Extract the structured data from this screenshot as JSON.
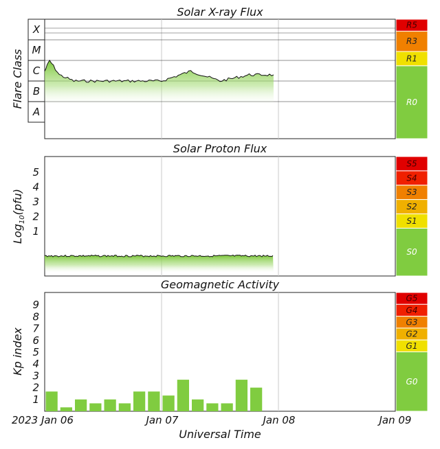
{
  "chart_data": [
    {
      "type": "area",
      "title": "Solar X-ray Flux",
      "ylabel": "Flare Class",
      "y_classes": [
        "X",
        "M",
        "C",
        "B",
        "A"
      ],
      "x": [
        "Jan 06 00:00",
        "Jan 06 01:00",
        "Jan 06 03:00",
        "Jan 06 06:00",
        "Jan 06 12:00",
        "Jan 06 18:00",
        "Jan 07 00:00",
        "Jan 07 06:00",
        "Jan 07 12:00",
        "Jan 07 18:00",
        "Jan 07 23:00"
      ],
      "values": [
        "C3",
        "M1",
        "C2",
        "C1",
        "C1",
        "C1",
        "C1",
        "C3",
        "C1",
        "C2",
        "C2"
      ],
      "scale": [
        {
          "label": "R5",
          "color": "#e00000"
        },
        {
          "label": "R3",
          "color": "#f08000"
        },
        {
          "label": "R1",
          "color": "#f0e000"
        },
        {
          "label": "R0",
          "color": "#80cc40"
        }
      ]
    },
    {
      "type": "area",
      "title": "Solar Proton Flux",
      "ylabel": "Log10(pfu)",
      "yticks": [
        "1",
        "2",
        "3",
        "4",
        "5"
      ],
      "x": [
        "Jan 06 00:00",
        "Jan 07 23:00"
      ],
      "values": [
        -0.2,
        -0.2
      ],
      "scale": [
        {
          "label": "S5",
          "color": "#e00000"
        },
        {
          "label": "S4",
          "color": "#f02000"
        },
        {
          "label": "S3",
          "color": "#f08000"
        },
        {
          "label": "S2",
          "color": "#f0b000"
        },
        {
          "label": "S1",
          "color": "#f0e000"
        },
        {
          "label": "S0",
          "color": "#80cc40"
        }
      ]
    },
    {
      "type": "bar",
      "title": "Geomagnetic Activity",
      "ylabel": "Kp index",
      "yticks": [
        "1",
        "2",
        "3",
        "4",
        "5",
        "6",
        "7",
        "8",
        "9"
      ],
      "ylim": [
        0,
        10
      ],
      "x": [
        "Jan 06 00:00",
        "Jan 06 03:00",
        "Jan 06 06:00",
        "Jan 06 09:00",
        "Jan 06 12:00",
        "Jan 06 15:00",
        "Jan 06 18:00",
        "Jan 06 21:00",
        "Jan 07 00:00",
        "Jan 07 03:00",
        "Jan 07 06:00",
        "Jan 07 09:00",
        "Jan 07 12:00",
        "Jan 07 15:00",
        "Jan 07 18:00",
        "Jan 07 21:00"
      ],
      "values": [
        1.67,
        0.33,
        1.0,
        0.67,
        1.0,
        0.67,
        1.67,
        1.67,
        1.33,
        2.67,
        1.0,
        0.67,
        0.67,
        2.67,
        2.0,
        null
      ],
      "scale": [
        {
          "label": "G5",
          "color": "#e00000"
        },
        {
          "label": "G4",
          "color": "#f02000"
        },
        {
          "label": "G3",
          "color": "#f08000"
        },
        {
          "label": "G2",
          "color": "#f0b000"
        },
        {
          "label": "G1",
          "color": "#f0e000"
        },
        {
          "label": "G0",
          "color": "#80cc40"
        }
      ]
    }
  ],
  "x_axis": {
    "ticks": [
      "2023 Jan 06",
      "Jan 07",
      "Jan 08",
      "Jan 09"
    ],
    "label": "Universal Time"
  }
}
